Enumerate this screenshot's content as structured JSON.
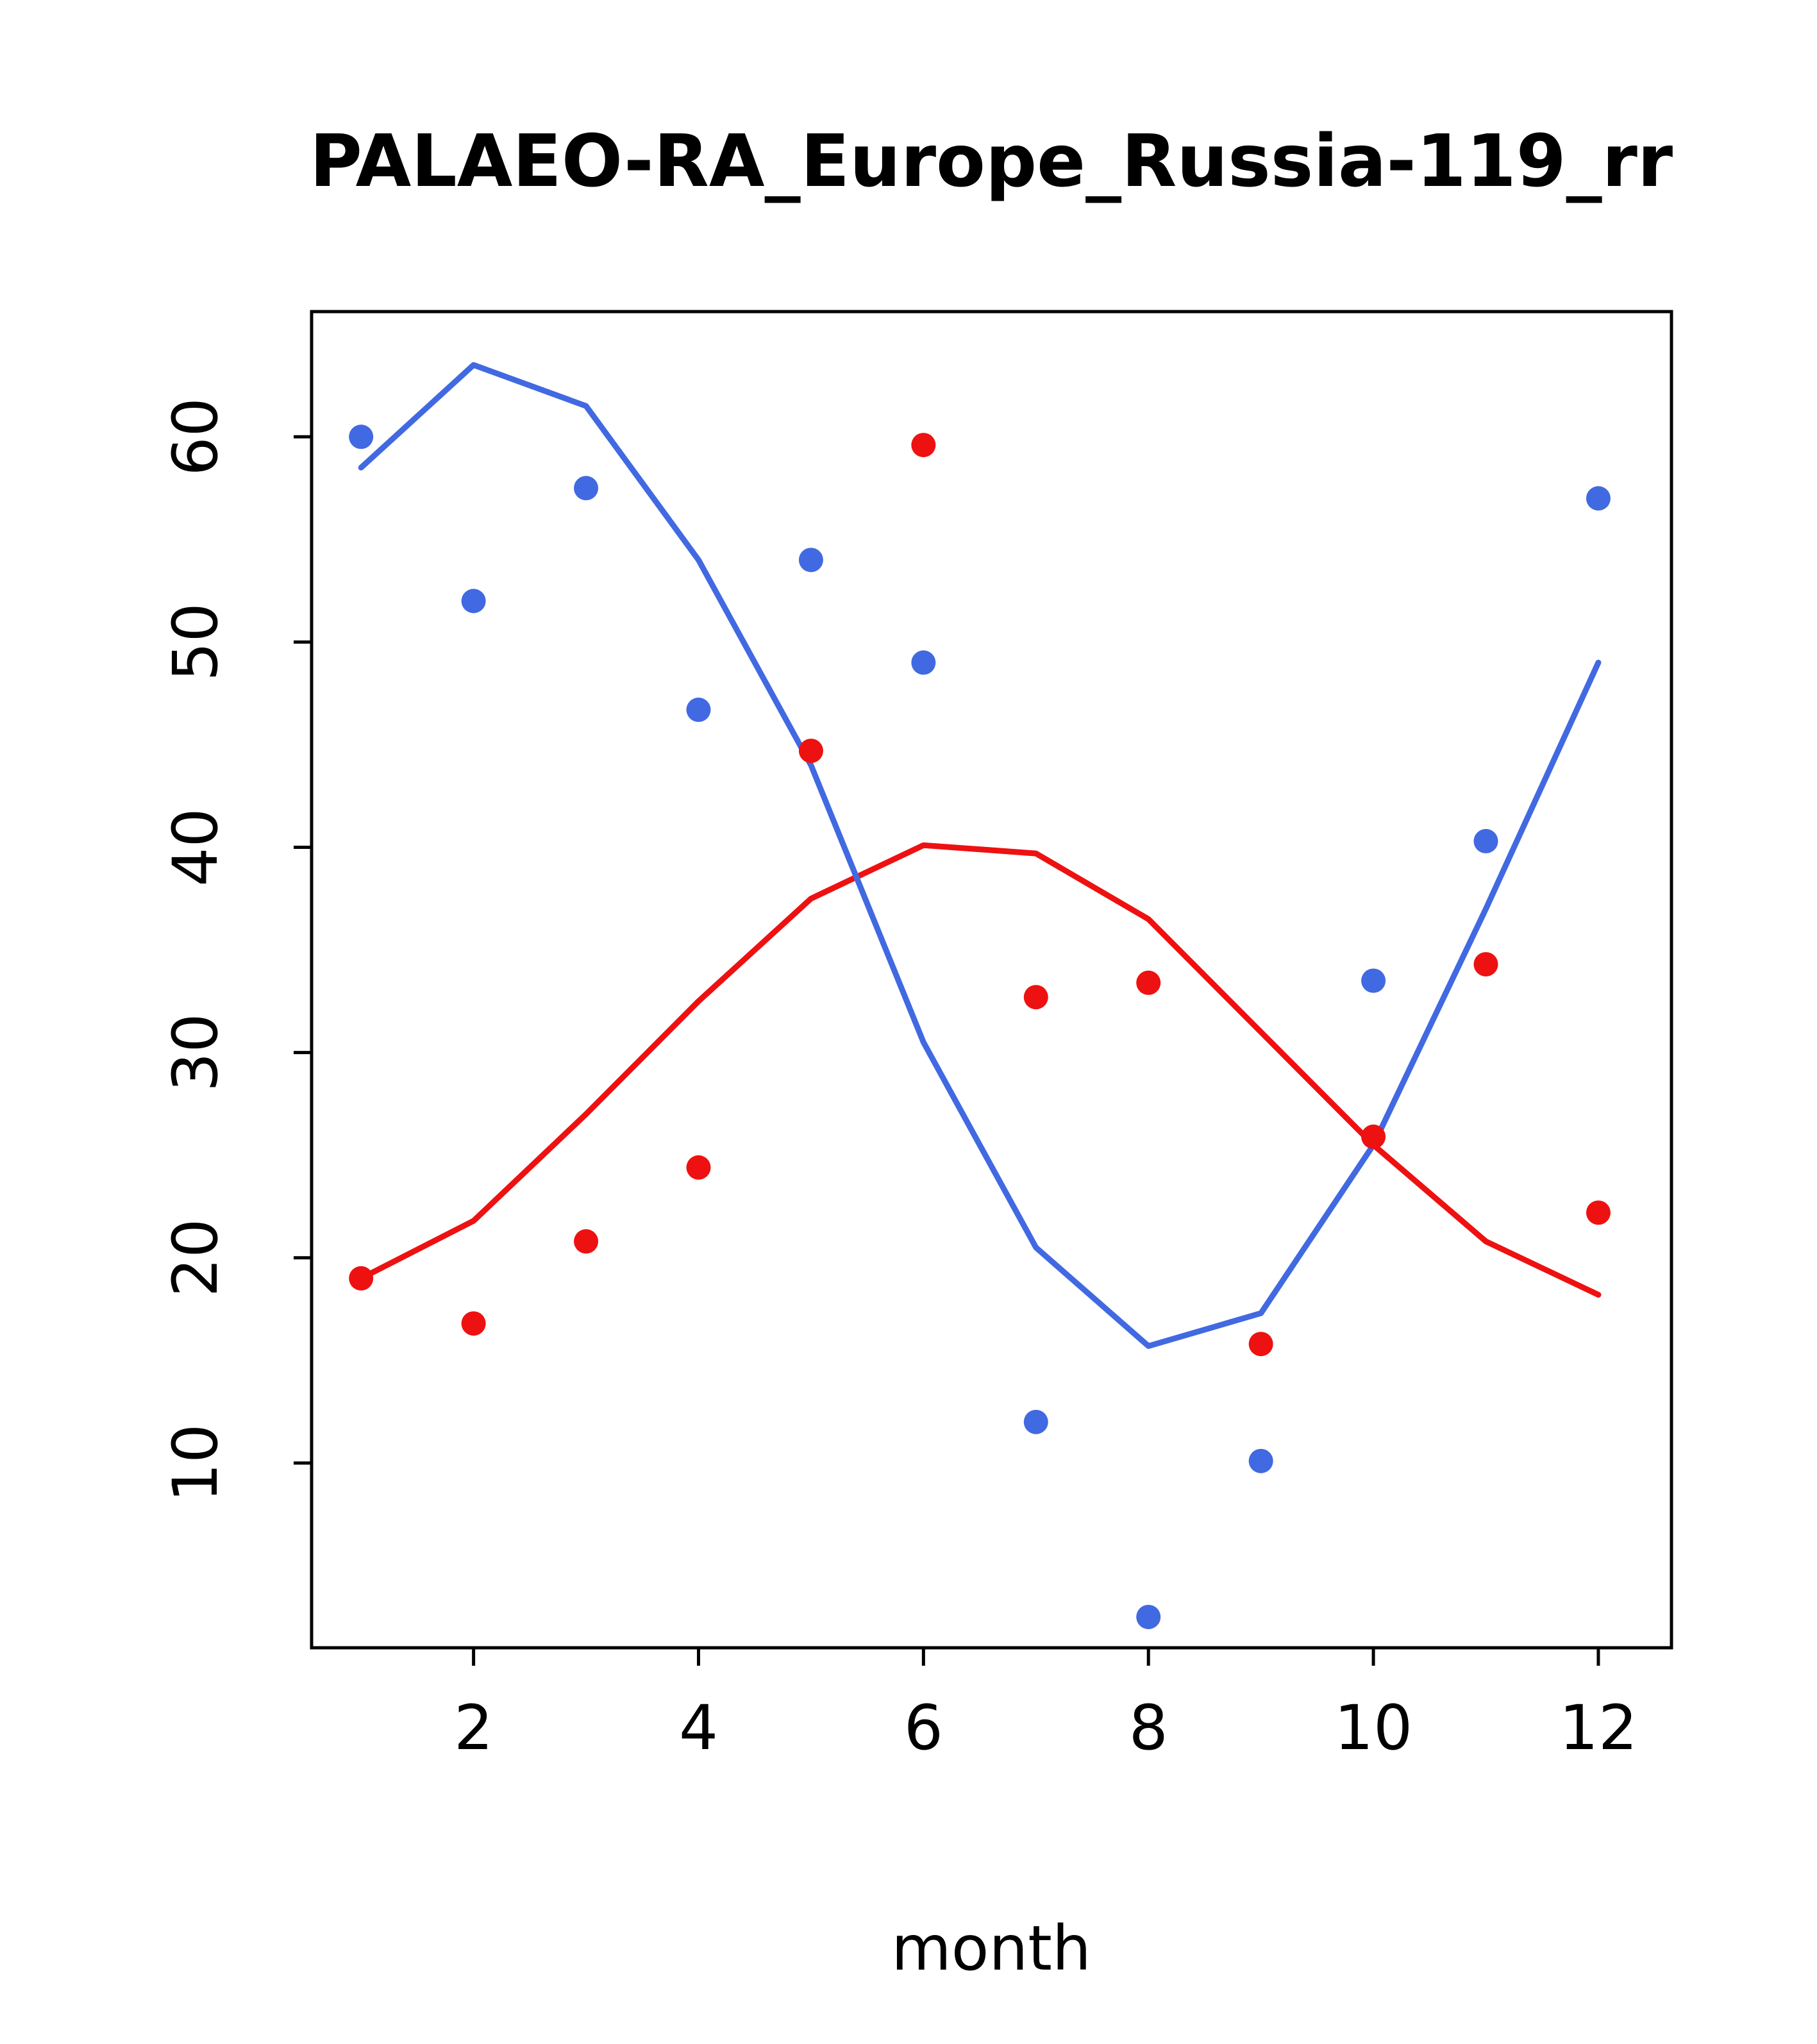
{
  "figure": {
    "background": "#ffffff",
    "axis_color": "#000000"
  },
  "chart_data": {
    "type": "line",
    "title": "PALAEO-RA_Europe_Russia-119_rr",
    "xlabel": "month",
    "ylabel": "",
    "grid": false,
    "legend": "none",
    "xlim": [
      0.56,
      12.65
    ],
    "ylim": [
      1.0,
      66.1
    ],
    "x_ticks": [
      2,
      4,
      6,
      8,
      10,
      12
    ],
    "y_ticks": [
      10,
      20,
      30,
      40,
      50,
      60
    ],
    "x": [
      1,
      2,
      3,
      4,
      5,
      6,
      7,
      8,
      9,
      10,
      11,
      12
    ],
    "series": [
      {
        "name": "red-line",
        "type": "line",
        "color": "#ee1111",
        "values": [
          19.0,
          21.8,
          27.0,
          32.5,
          37.5,
          40.1,
          39.7,
          36.5,
          31.0,
          25.5,
          20.8,
          18.2
        ]
      },
      {
        "name": "blue-line",
        "type": "line",
        "color": "#4169e1",
        "values": [
          58.5,
          63.5,
          61.5,
          54.0,
          44.0,
          30.5,
          20.5,
          15.7,
          17.3,
          25.5,
          37.0,
          49.0
        ]
      },
      {
        "name": "red-points",
        "type": "scatter",
        "color": "#ee1111",
        "values": [
          19.0,
          16.8,
          20.8,
          24.4,
          44.7,
          59.6,
          32.7,
          33.4,
          15.8,
          25.9,
          34.3,
          22.2
        ]
      },
      {
        "name": "blue-points",
        "type": "scatter",
        "color": "#4169e1",
        "values": [
          60.0,
          52.0,
          57.5,
          46.7,
          54.0,
          49.0,
          12.0,
          2.5,
          10.1,
          33.5,
          40.3,
          57.0
        ]
      }
    ],
    "marker_radius": 19,
    "line_width": 9
  }
}
